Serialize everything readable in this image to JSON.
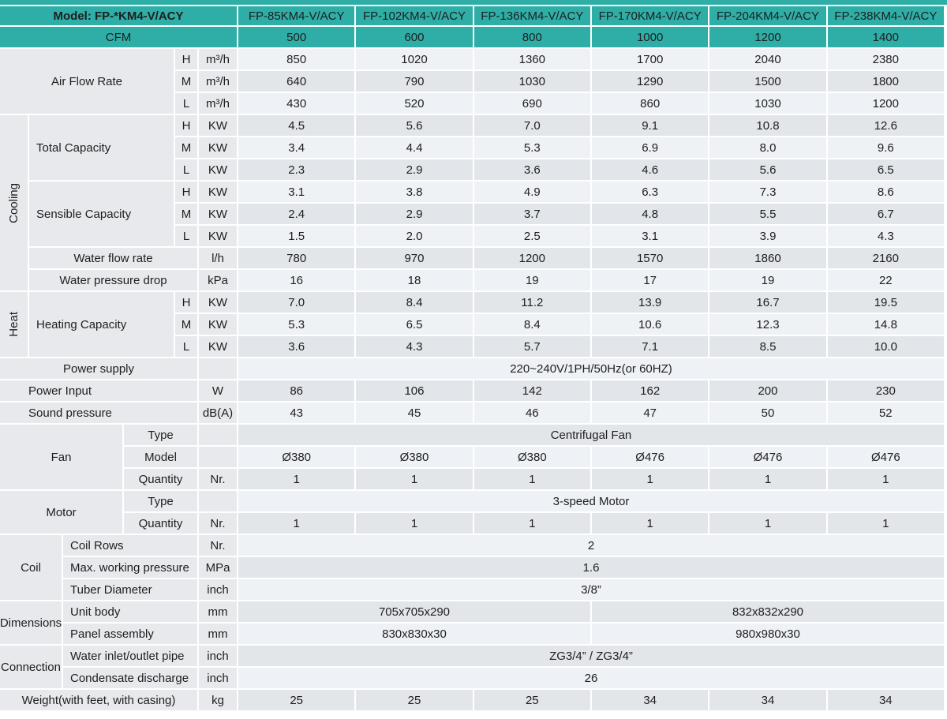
{
  "title": "Fan coil unit specification table",
  "colors": {
    "teal_accent": "#2EAEA6",
    "label_gray": "#E8E9EC",
    "row_light": "#EEF1F5",
    "row_dark": "#E2E5E9",
    "grid_line": "#FFFFFF",
    "text": "#1E1E1E"
  },
  "table": {
    "cells": [
      {
        "r": 1,
        "c": 1,
        "cs": 6,
        "k": "tb",
        "t": "Model: FP-*KM4-V/ACY",
        "n": "model-header"
      },
      {
        "r": 1,
        "k": "t",
        "n": "col-header",
        "vals": [
          "FP-85KM4-V/ACY",
          "FP-102KM4-V/ACY",
          "FP-136KM4-V/ACY",
          "FP-170KM4-V/ACY",
          "FP-204KM4-V/ACY",
          "FP-238KM4-V/ACY"
        ]
      },
      {
        "r": 2,
        "c": 1,
        "cs": 6,
        "k": "t",
        "t": "CFM",
        "n": "cfm-header"
      },
      {
        "r": 2,
        "k": "t",
        "n": "cfm-value",
        "vals": [
          "500",
          "600",
          "800",
          "1000",
          "1200",
          "1400"
        ]
      },
      {
        "r": 3,
        "c": 1,
        "cs": 4,
        "rs": 3,
        "k": "g",
        "t": "Air Flow Rate",
        "n": "label-air-flow-rate"
      },
      {
        "r": 3,
        "c": 5,
        "k": "g",
        "t": "H",
        "n": "speed-label"
      },
      {
        "r": 3,
        "c": 6,
        "k": "g",
        "t": "m³/h",
        "n": "unit-label"
      },
      {
        "r": 3,
        "k": "L",
        "n": "value-air-flow-h",
        "vals": [
          "850",
          "1020",
          "1360",
          "1700",
          "2040",
          "2380"
        ]
      },
      {
        "r": 4,
        "c": 5,
        "k": "g",
        "t": "M",
        "n": "speed-label"
      },
      {
        "r": 4,
        "c": 6,
        "k": "g",
        "t": "m³/h",
        "n": "unit-label"
      },
      {
        "r": 4,
        "k": "D",
        "n": "value-air-flow-m",
        "vals": [
          "640",
          "790",
          "1030",
          "1290",
          "1500",
          "1800"
        ]
      },
      {
        "r": 5,
        "c": 5,
        "k": "g",
        "t": "L",
        "n": "speed-label"
      },
      {
        "r": 5,
        "c": 6,
        "k": "g",
        "t": "m³/h",
        "n": "unit-label"
      },
      {
        "r": 5,
        "k": "L",
        "n": "value-air-flow-l",
        "vals": [
          "430",
          "520",
          "690",
          "860",
          "1030",
          "1200"
        ]
      },
      {
        "r": 6,
        "c": 1,
        "rs": 8,
        "k": "gv",
        "t": "Cooling",
        "n": "label-cooling"
      },
      {
        "r": 6,
        "c": 2,
        "cs": 3,
        "rs": 3,
        "k": "gl",
        "t": "Total Capacity",
        "n": "label-total-capacity"
      },
      {
        "r": 6,
        "c": 5,
        "k": "g",
        "t": "H",
        "n": "speed-label"
      },
      {
        "r": 6,
        "c": 6,
        "k": "g",
        "t": "KW",
        "n": "unit-label"
      },
      {
        "r": 6,
        "k": "D",
        "n": "value-total-capacity-h",
        "vals": [
          "4.5",
          "5.6",
          "7.0",
          "9.1",
          "10.8",
          "12.6"
        ]
      },
      {
        "r": 7,
        "c": 5,
        "k": "g",
        "t": "M",
        "n": "speed-label"
      },
      {
        "r": 7,
        "c": 6,
        "k": "g",
        "t": "KW",
        "n": "unit-label"
      },
      {
        "r": 7,
        "k": "L",
        "n": "value-total-capacity-m",
        "vals": [
          "3.4",
          "4.4",
          "5.3",
          "6.9",
          "8.0",
          "9.6"
        ]
      },
      {
        "r": 8,
        "c": 5,
        "k": "g",
        "t": "L",
        "n": "speed-label"
      },
      {
        "r": 8,
        "c": 6,
        "k": "g",
        "t": "KW",
        "n": "unit-label"
      },
      {
        "r": 8,
        "k": "D",
        "n": "value-total-capacity-l",
        "vals": [
          "2.3",
          "2.9",
          "3.6",
          "4.6",
          "5.6",
          "6.5"
        ]
      },
      {
        "r": 9,
        "c": 2,
        "cs": 3,
        "rs": 3,
        "k": "gl",
        "t": "Sensible Capacity",
        "n": "label-sensible-capacity"
      },
      {
        "r": 9,
        "c": 5,
        "k": "g",
        "t": "H",
        "n": "speed-label"
      },
      {
        "r": 9,
        "c": 6,
        "k": "g",
        "t": "KW",
        "n": "unit-label"
      },
      {
        "r": 9,
        "k": "L",
        "n": "value-sensible-capacity-h",
        "vals": [
          "3.1",
          "3.8",
          "4.9",
          "6.3",
          "7.3",
          "8.6"
        ]
      },
      {
        "r": 10,
        "c": 5,
        "k": "g",
        "t": "M",
        "n": "speed-label"
      },
      {
        "r": 10,
        "c": 6,
        "k": "g",
        "t": "KW",
        "n": "unit-label"
      },
      {
        "r": 10,
        "k": "D",
        "n": "value-sensible-capacity-m",
        "vals": [
          "2.4",
          "2.9",
          "3.7",
          "4.8",
          "5.5",
          "6.7"
        ]
      },
      {
        "r": 11,
        "c": 5,
        "k": "g",
        "t": "L",
        "n": "speed-label"
      },
      {
        "r": 11,
        "c": 6,
        "k": "g",
        "t": "KW",
        "n": "unit-label"
      },
      {
        "r": 11,
        "k": "L",
        "n": "value-sensible-capacity-l",
        "vals": [
          "1.5",
          "2.0",
          "2.5",
          "3.1",
          "3.9",
          "4.3"
        ]
      },
      {
        "r": 12,
        "c": 2,
        "cs": 4,
        "k": "g",
        "t": "Water flow rate",
        "n": "label-water-flow-rate"
      },
      {
        "r": 12,
        "c": 6,
        "k": "g",
        "t": "l/h",
        "n": "unit-label"
      },
      {
        "r": 12,
        "k": "D",
        "n": "value-water-flow-rate",
        "vals": [
          "780",
          "970",
          "1200",
          "1570",
          "1860",
          "2160"
        ]
      },
      {
        "r": 13,
        "c": 2,
        "cs": 4,
        "k": "g",
        "t": "Water pressure drop",
        "n": "label-water-pressure-drop"
      },
      {
        "r": 13,
        "c": 6,
        "k": "g",
        "t": "kPa",
        "n": "unit-label"
      },
      {
        "r": 13,
        "k": "L",
        "n": "value-water-pressure-drop",
        "vals": [
          "16",
          "18",
          "19",
          "17",
          "19",
          "22"
        ]
      },
      {
        "r": 14,
        "c": 1,
        "rs": 3,
        "k": "gv",
        "t": "Heat",
        "n": "label-heat"
      },
      {
        "r": 14,
        "c": 2,
        "cs": 3,
        "rs": 3,
        "k": "gl",
        "t": "Heating Capacity",
        "n": "label-heating-capacity"
      },
      {
        "r": 14,
        "c": 5,
        "k": "g",
        "t": "H",
        "n": "speed-label"
      },
      {
        "r": 14,
        "c": 6,
        "k": "g",
        "t": "KW",
        "n": "unit-label"
      },
      {
        "r": 14,
        "k": "D",
        "n": "value-heating-capacity-h",
        "vals": [
          "7.0",
          "8.4",
          "11.2",
          "13.9",
          "16.7",
          "19.5"
        ]
      },
      {
        "r": 15,
        "c": 5,
        "k": "g",
        "t": "M",
        "n": "speed-label"
      },
      {
        "r": 15,
        "c": 6,
        "k": "g",
        "t": "KW",
        "n": "unit-label"
      },
      {
        "r": 15,
        "k": "L",
        "n": "value-heating-capacity-m",
        "vals": [
          "5.3",
          "6.5",
          "8.4",
          "10.6",
          "12.3",
          "14.8"
        ]
      },
      {
        "r": 16,
        "c": 5,
        "k": "g",
        "t": "L",
        "n": "speed-label"
      },
      {
        "r": 16,
        "c": 6,
        "k": "g",
        "t": "KW",
        "n": "unit-label"
      },
      {
        "r": 16,
        "k": "D",
        "n": "value-heating-capacity-l",
        "vals": [
          "3.6",
          "4.3",
          "5.7",
          "7.1",
          "8.5",
          "10.0"
        ]
      },
      {
        "r": 17,
        "c": 1,
        "cs": 5,
        "k": "g",
        "t": "Power supply",
        "n": "label-power-supply"
      },
      {
        "r": 17,
        "c": 6,
        "k": "g",
        "t": "",
        "n": "unit-label-empty"
      },
      {
        "r": 17,
        "c": 7,
        "cs": 6,
        "k": "L",
        "t": "220~240V/1PH/50Hz(or 60HZ)",
        "n": "value-power-supply"
      },
      {
        "r": 18,
        "c": 1,
        "cs": 5,
        "k": "gl2",
        "t": "Power Input",
        "n": "label-power-input"
      },
      {
        "r": 18,
        "c": 6,
        "k": "g",
        "t": "W",
        "n": "unit-label"
      },
      {
        "r": 18,
        "k": "D",
        "n": "value-power-input",
        "vals": [
          "86",
          "106",
          "142",
          "162",
          "200",
          "230"
        ]
      },
      {
        "r": 19,
        "c": 1,
        "cs": 5,
        "k": "gl2",
        "t": "Sound pressure",
        "n": "label-sound-pressure"
      },
      {
        "r": 19,
        "c": 6,
        "k": "g",
        "t": "dB(A)",
        "n": "unit-label"
      },
      {
        "r": 19,
        "k": "L",
        "n": "value-sound-pressure",
        "vals": [
          "43",
          "45",
          "46",
          "47",
          "50",
          "52"
        ]
      },
      {
        "r": 20,
        "c": 1,
        "cs": 3,
        "rs": 3,
        "k": "g",
        "t": "Fan",
        "n": "label-fan"
      },
      {
        "r": 20,
        "c": 4,
        "cs": 2,
        "k": "g",
        "t": "Type",
        "n": "sublabel-fan-type"
      },
      {
        "r": 20,
        "c": 6,
        "k": "g",
        "t": "",
        "n": "unit-label-empty"
      },
      {
        "r": 20,
        "c": 7,
        "cs": 6,
        "k": "D",
        "t": "Centrifugal Fan",
        "n": "value-fan-type"
      },
      {
        "r": 21,
        "c": 4,
        "cs": 2,
        "k": "g",
        "t": "Model",
        "n": "sublabel-fan-model"
      },
      {
        "r": 21,
        "c": 6,
        "k": "g",
        "t": "",
        "n": "unit-label-empty"
      },
      {
        "r": 21,
        "k": "L",
        "n": "value-fan-model",
        "vals": [
          "Ø380",
          "Ø380",
          "Ø380",
          "Ø476",
          "Ø476",
          "Ø476"
        ]
      },
      {
        "r": 22,
        "c": 4,
        "cs": 2,
        "k": "g",
        "t": "Quantity",
        "n": "sublabel-fan-quantity"
      },
      {
        "r": 22,
        "c": 6,
        "k": "g",
        "t": "Nr.",
        "n": "unit-label"
      },
      {
        "r": 22,
        "k": "D",
        "n": "value-fan-quantity",
        "vals": [
          "1",
          "1",
          "1",
          "1",
          "1",
          "1"
        ]
      },
      {
        "r": 23,
        "c": 1,
        "cs": 3,
        "rs": 2,
        "k": "g",
        "t": "Motor",
        "n": "label-motor"
      },
      {
        "r": 23,
        "c": 4,
        "cs": 2,
        "k": "g",
        "t": "Type",
        "n": "sublabel-motor-type"
      },
      {
        "r": 23,
        "c": 6,
        "k": "g",
        "t": "",
        "n": "unit-label-empty"
      },
      {
        "r": 23,
        "c": 7,
        "cs": 6,
        "k": "L",
        "t": "3-speed Motor",
        "n": "value-motor-type"
      },
      {
        "r": 24,
        "c": 4,
        "cs": 2,
        "k": "g",
        "t": "Quantity",
        "n": "sublabel-motor-quantity"
      },
      {
        "r": 24,
        "c": 6,
        "k": "g",
        "t": "Nr.",
        "n": "unit-label"
      },
      {
        "r": 24,
        "k": "D",
        "n": "value-motor-quantity",
        "vals": [
          "1",
          "1",
          "1",
          "1",
          "1",
          "1"
        ]
      },
      {
        "r": 25,
        "c": 1,
        "cs": 2,
        "rs": 3,
        "k": "g",
        "t": "Coil",
        "n": "label-coil"
      },
      {
        "r": 25,
        "c": 3,
        "cs": 3,
        "k": "gl",
        "t": "Coil Rows",
        "n": "sublabel-coil-rows"
      },
      {
        "r": 25,
        "c": 6,
        "k": "g",
        "t": "Nr.",
        "n": "unit-label"
      },
      {
        "r": 25,
        "c": 7,
        "cs": 6,
        "k": "L",
        "t": "2",
        "n": "value-coil-rows"
      },
      {
        "r": 26,
        "c": 3,
        "cs": 3,
        "k": "gl",
        "t": "Max. working pressure",
        "n": "sublabel-max-working-pressure"
      },
      {
        "r": 26,
        "c": 6,
        "k": "g",
        "t": "MPa",
        "n": "unit-label"
      },
      {
        "r": 26,
        "c": 7,
        "cs": 6,
        "k": "D",
        "t": "1.6",
        "n": "value-max-working-pressure"
      },
      {
        "r": 27,
        "c": 3,
        "cs": 3,
        "k": "gl",
        "t": "Tuber Diameter",
        "n": "sublabel-tuber-diameter"
      },
      {
        "r": 27,
        "c": 6,
        "k": "g",
        "t": "inch",
        "n": "unit-label"
      },
      {
        "r": 27,
        "c": 7,
        "cs": 6,
        "k": "L",
        "t": "3/8”",
        "n": "value-tuber-diameter"
      },
      {
        "r": 28,
        "c": 1,
        "cs": 2,
        "rs": 2,
        "k": "g",
        "t": "Dimensions",
        "n": "label-dimensions"
      },
      {
        "r": 28,
        "c": 3,
        "cs": 3,
        "k": "gl",
        "t": "Unit body",
        "n": "sublabel-unit-body"
      },
      {
        "r": 28,
        "c": 6,
        "k": "g",
        "t": "mm",
        "n": "unit-label"
      },
      {
        "r": 28,
        "c": 7,
        "cs": 3,
        "k": "D",
        "t": "705x705x290",
        "n": "value-unit-body-small"
      },
      {
        "r": 28,
        "c": 10,
        "cs": 3,
        "k": "D",
        "t": "832x832x290",
        "n": "value-unit-body-large"
      },
      {
        "r": 29,
        "c": 3,
        "cs": 3,
        "k": "gl",
        "t": "Panel assembly",
        "n": "sublabel-panel-assembly"
      },
      {
        "r": 29,
        "c": 6,
        "k": "g",
        "t": "mm",
        "n": "unit-label"
      },
      {
        "r": 29,
        "c": 7,
        "cs": 3,
        "k": "L",
        "t": "830x830x30",
        "n": "value-panel-assembly-small"
      },
      {
        "r": 29,
        "c": 10,
        "cs": 3,
        "k": "L",
        "t": "980x980x30",
        "n": "value-panel-assembly-large"
      },
      {
        "r": 30,
        "c": 1,
        "cs": 2,
        "rs": 2,
        "k": "g",
        "t": "Connection",
        "n": "label-connection"
      },
      {
        "r": 30,
        "c": 3,
        "cs": 3,
        "k": "gl",
        "t": "Water inlet/outlet pipe",
        "n": "sublabel-water-inlet-outlet"
      },
      {
        "r": 30,
        "c": 6,
        "k": "g",
        "t": "inch",
        "n": "unit-label"
      },
      {
        "r": 30,
        "c": 7,
        "cs": 6,
        "k": "D",
        "t": "ZG3/4” / ZG3/4”",
        "n": "value-water-inlet-outlet"
      },
      {
        "r": 31,
        "c": 3,
        "cs": 3,
        "k": "gl",
        "t": "Condensate discharge",
        "n": "sublabel-condensate-discharge"
      },
      {
        "r": 31,
        "c": 6,
        "k": "g",
        "t": "inch",
        "n": "unit-label"
      },
      {
        "r": 31,
        "c": 7,
        "cs": 6,
        "k": "L",
        "t": "26",
        "n": "value-condensate-discharge"
      },
      {
        "r": 32,
        "c": 1,
        "cs": 5,
        "k": "g",
        "t": "Weight(with feet, with casing)",
        "n": "label-weight"
      },
      {
        "r": 32,
        "c": 6,
        "k": "g",
        "t": "kg",
        "n": "unit-label"
      },
      {
        "r": 32,
        "k": "D",
        "n": "value-weight",
        "vals": [
          "25",
          "25",
          "25",
          "34",
          "34",
          "34"
        ]
      }
    ]
  }
}
